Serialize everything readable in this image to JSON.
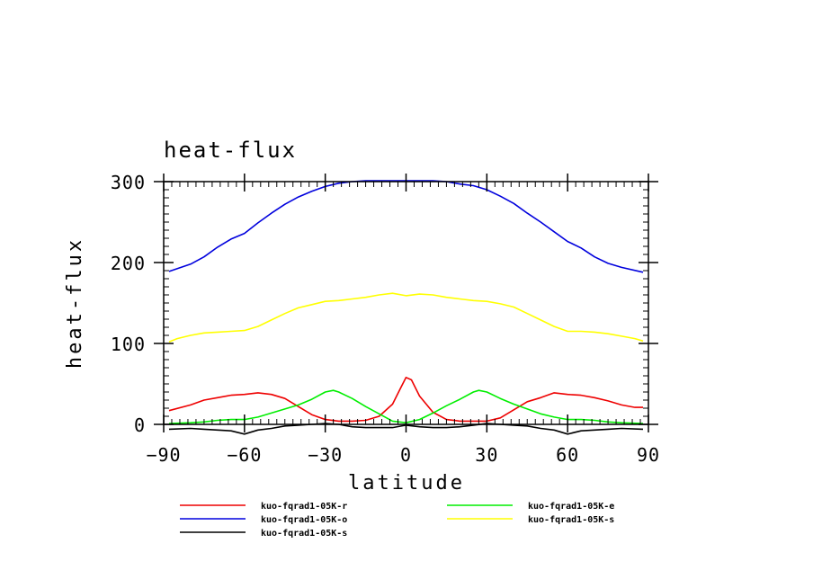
{
  "chart_data": {
    "type": "line",
    "title": "heat-flux",
    "xlabel": "latitude",
    "ylabel": "heat-flux",
    "xlim": [
      -90,
      90
    ],
    "ylim": [
      0,
      300
    ],
    "xticks": [
      -90,
      -60,
      -30,
      0,
      30,
      60,
      90
    ],
    "yticks": [
      0,
      100,
      200,
      300
    ],
    "xtick_labels": [
      "−90",
      "−60",
      "−30",
      "0",
      "30",
      "60",
      "90"
    ],
    "ytick_labels": [
      "0",
      "100",
      "200",
      "300"
    ],
    "grid": false,
    "legend_placement": "bottom",
    "series": [
      {
        "name": "kuo-fqrad1-05K-r",
        "color": "#ee0000",
        "x": [
          -88,
          -80,
          -75,
          -70,
          -65,
          -60,
          -55,
          -50,
          -45,
          -40,
          -35,
          -30,
          -25,
          -20,
          -15,
          -10,
          -5,
          -2,
          0,
          2,
          5,
          10,
          15,
          20,
          25,
          30,
          35,
          40,
          45,
          50,
          55,
          60,
          65,
          70,
          75,
          80,
          85,
          88
        ],
        "y": [
          17,
          24,
          30,
          33,
          36,
          37,
          39,
          37,
          32,
          22,
          12,
          6,
          4,
          4,
          5,
          10,
          25,
          45,
          58,
          55,
          35,
          15,
          6,
          4,
          4,
          4,
          8,
          18,
          28,
          33,
          39,
          37,
          36,
          33,
          29,
          24,
          21,
          21
        ]
      },
      {
        "name": "kuo-fqrad1-05K-o",
        "color": "#0000dd",
        "x": [
          -88,
          -80,
          -75,
          -70,
          -65,
          -60,
          -55,
          -50,
          -45,
          -40,
          -35,
          -30,
          -25,
          -20,
          -15,
          -10,
          -5,
          0,
          5,
          10,
          15,
          20,
          25,
          30,
          35,
          40,
          45,
          50,
          55,
          60,
          65,
          70,
          75,
          80,
          88
        ],
        "y": [
          189,
          198,
          207,
          219,
          229,
          236,
          249,
          261,
          272,
          281,
          288,
          294,
          298,
          300,
          301,
          301,
          301,
          301,
          301,
          301,
          300,
          297,
          295,
          290,
          282,
          273,
          261,
          250,
          238,
          226,
          218,
          207,
          199,
          194,
          188
        ]
      },
      {
        "name": "kuo-fqrad1-05K-s",
        "color": "#000000",
        "x": [
          -88,
          -80,
          -75,
          -70,
          -65,
          -60,
          -55,
          -50,
          -45,
          -40,
          -35,
          -30,
          -25,
          -20,
          -15,
          -10,
          -5,
          0,
          5,
          10,
          15,
          20,
          25,
          30,
          35,
          40,
          45,
          50,
          55,
          60,
          65,
          70,
          75,
          80,
          88
        ],
        "y": [
          -6,
          -5,
          -6,
          -7,
          -8,
          -12,
          -7,
          -5,
          -2,
          -1,
          0,
          1,
          0,
          -3,
          -4,
          -4,
          -4,
          -1,
          -3,
          -4,
          -4,
          -3,
          -1,
          1,
          0,
          -1,
          -2,
          -5,
          -7,
          -12,
          -8,
          -7,
          -6,
          -5,
          -6
        ]
      },
      {
        "name": "kuo-fqrad1-05K-e",
        "color": "#00ee00",
        "x": [
          -88,
          -80,
          -75,
          -70,
          -65,
          -60,
          -55,
          -50,
          -45,
          -40,
          -35,
          -30,
          -27,
          -25,
          -20,
          -15,
          -10,
          -5,
          0,
          5,
          10,
          15,
          20,
          25,
          27,
          30,
          35,
          40,
          45,
          50,
          55,
          60,
          65,
          70,
          75,
          80,
          88
        ],
        "y": [
          1,
          2,
          3,
          5,
          6,
          6,
          9,
          14,
          19,
          24,
          31,
          40,
          42,
          40,
          32,
          22,
          13,
          4,
          2,
          6,
          14,
          23,
          31,
          40,
          42,
          40,
          32,
          25,
          19,
          13,
          9,
          6,
          6,
          5,
          3,
          2,
          1
        ]
      },
      {
        "name": "kuo-fqrad1-05K-s",
        "color": "#ffff00",
        "x": [
          -88,
          -85,
          -80,
          -75,
          -70,
          -65,
          -60,
          -55,
          -50,
          -45,
          -40,
          -35,
          -30,
          -25,
          -20,
          -15,
          -10,
          -5,
          0,
          5,
          10,
          15,
          20,
          25,
          30,
          35,
          40,
          45,
          50,
          55,
          60,
          65,
          70,
          75,
          80,
          85,
          88
        ],
        "y": [
          102,
          106,
          110,
          113,
          114,
          115,
          116,
          121,
          129,
          137,
          144,
          148,
          152,
          153,
          155,
          157,
          160,
          162,
          159,
          161,
          160,
          157,
          155,
          153,
          152,
          149,
          145,
          137,
          129,
          121,
          115,
          115,
          114,
          112,
          109,
          106,
          103
        ]
      }
    ]
  }
}
